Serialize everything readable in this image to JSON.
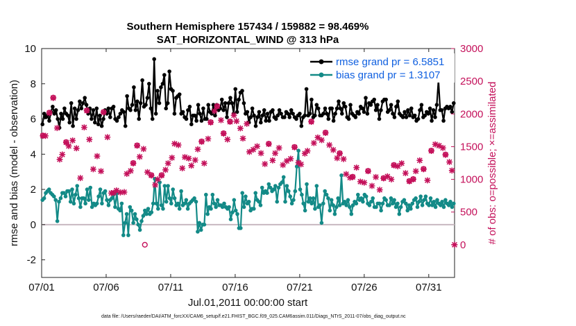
{
  "chart_data": {
    "type": "line",
    "title": "Southern Hemisphere 157434 / 159882 = 98.469%",
    "subtitle": "SAT_HORIZONTAL_WIND @ 313 hPa",
    "xlabel": "Jul.01,2011 00:00:00 start",
    "ylabel_left": "rmse and bias (model - observation)",
    "ylabel_right": "# of obs: o=possible; ×=assimilated",
    "footnote": "data file: /Users/raeder/DAI/ATM_forcXX/CAM6_setup/f.e21.FHIST_BGC.f09_025.CAM6assim.011/Diags_NTrS_2011-07/obs_diag_output.nc",
    "xlim": [
      0,
      32
    ],
    "x_ticks": [
      0,
      5,
      10,
      15,
      20,
      25,
      30
    ],
    "x_tick_labels": [
      "07/01",
      "07/06",
      "07/11",
      "07/16",
      "07/21",
      "07/26",
      "07/31"
    ],
    "ylim_left": [
      -3,
      10
    ],
    "y_ticks_left": [
      "-2",
      "0",
      "2",
      "4",
      "6",
      "8",
      "10"
    ],
    "ylim_right": [
      -500,
      3000
    ],
    "y_ticks_right": [
      "0",
      "500",
      "1000",
      "1500",
      "2000",
      "2500",
      "3000"
    ],
    "legend": {
      "position": "top-right",
      "entries": [
        {
          "label": "rmse grand pr = 6.5851",
          "color": "#000000"
        },
        {
          "label": "bias grand pr = 1.3107",
          "color": "#138a87"
        }
      ]
    },
    "colors": {
      "rmse": "#000000",
      "bias": "#138a87",
      "obs": "#c4105a",
      "zero_line": "#c8b8c0"
    },
    "series": [
      {
        "name": "rmse",
        "axis": "left",
        "values": [
          5.7,
          6.3,
          6.1,
          6.2,
          5.9,
          6.4,
          6.7,
          6.3,
          6.5,
          6.0,
          5.5,
          6.3,
          6.0,
          6.6,
          6.3,
          6.2,
          5.8,
          6.9,
          5.6,
          6.6,
          6.0,
          6.5,
          7.0,
          6.6,
          6.9,
          7.2,
          6.8,
          6.3,
          6.6,
          6.0,
          6.5,
          5.8,
          6.6,
          5.7,
          6.2,
          5.6,
          6.0,
          6.5,
          6.3,
          6.6,
          6.1,
          6.6,
          6.7,
          6.0,
          5.9,
          6.1,
          6.3,
          6.5,
          6.4,
          5.6,
          7.3,
          6.6,
          6.5,
          6.8,
          7.8,
          6.5,
          7.0,
          6.0,
          6.9,
          8.2,
          6.7,
          6.8,
          7.2,
          8.0,
          6.6,
          6.0,
          9.4,
          6.3,
          7.6,
          6.9,
          7.8,
          8.0,
          8.5,
          6.6,
          6.9,
          8.7,
          7.7,
          7.6,
          6.3,
          7.2,
          7.3,
          7.4,
          6.3,
          6.4,
          6.1,
          6.0,
          6.5,
          6.7,
          5.7,
          6.2,
          6.2,
          5.9,
          6.8,
          6.3,
          5.9,
          6.6,
          6.0,
          6.0,
          6.8,
          6.4,
          6.3,
          6.8,
          6.2,
          6.8,
          6.5,
          6.6,
          7.1,
          6.5,
          6.9,
          6.1,
          6.9,
          7.2,
          6.9,
          6.3,
          7.7,
          6.4,
          7.1,
          7.5,
          7.6,
          6.9,
          6.3,
          6.4,
          5.8,
          6.1,
          6.6,
          6.2,
          5.6,
          6.1,
          6.4,
          5.8,
          6.2,
          6.5,
          5.9,
          6.3,
          5.9,
          6.4,
          6.5,
          6.1,
          6.0,
          6.2,
          6.5,
          6.3,
          6.1,
          6.1,
          6.4,
          6.3,
          6.1,
          6.5,
          6.3,
          6.1,
          6.0,
          6.2,
          6.3,
          5.6,
          6.1,
          6.2,
          7.7,
          6.2,
          6.3,
          7.1,
          6.1,
          6.2,
          6.8,
          6.6,
          6.2,
          6.2,
          6.3,
          6.6,
          6.3,
          6.0,
          6.6,
          6.6,
          5.9,
          6.3,
          6.6,
          7.0,
          6.6,
          6.3,
          6.9,
          6.7,
          6.1,
          6.0,
          6.8,
          6.3,
          6.2,
          6.1,
          6.4,
          6.3,
          6.7,
          6.6,
          6.4,
          7.2,
          6.3,
          6.9,
          6.8,
          7.0,
          7.1,
          6.5,
          6.8,
          6.0,
          6.5,
          7.0,
          7.1,
          7.1,
          6.4,
          6.5,
          6.8,
          6.3,
          6.1,
          6.7,
          7.0,
          6.3,
          6.2,
          6.1,
          6.4,
          6.1,
          6.5,
          6.2,
          6.6,
          6.1,
          6.2,
          5.9,
          6.0,
          6.5,
          6.8,
          6.1,
          6.2,
          6.4,
          6.3,
          6.6,
          5.9,
          6.5,
          6.1,
          6.8,
          8.2,
          6.5,
          6.5,
          5.9,
          6.6,
          6.7,
          6.6,
          6.7,
          6.4,
          6.9
        ]
      },
      {
        "name": "bias",
        "axis": "left",
        "values": [
          1.4,
          1.5,
          1.8,
          1.9,
          2.0,
          1.8,
          1.7,
          1.6,
          1.4,
          0.2,
          1.3,
          1.5,
          1.8,
          1.8,
          1.6,
          1.9,
          1.9,
          1.3,
          2.0,
          1.2,
          1.7,
          2.2,
          1.5,
          1.0,
          1.5,
          1.5,
          1.2,
          2.0,
          1.4,
          2.1,
          1.0,
          1.2,
          1.1,
          1.2,
          1.6,
          2.0,
          1.2,
          1.8,
          1.9,
          1.4,
          1.1,
          1.4,
          1.5,
          1.7,
          1.0,
          1.8,
          0.9,
          0.8,
          1.2,
          -0.6,
          0.1,
          0.6,
          -0.6,
          1.0,
          0.8,
          0.1,
          0.6,
          0.3,
          0.0,
          -0.3,
          0.2,
          0.5,
          0.8,
          0.6,
          0.9,
          0.6,
          0.7,
          1.2,
          2.6,
          1.2,
          0.9,
          2.4,
          1.1,
          0.9,
          2.2,
          1.3,
          2.2,
          1.5,
          1.2,
          2.0,
          1.5,
          1.1,
          1.2,
          0.9,
          1.9,
          1.1,
          1.2,
          1.4,
          0.9,
          1.2,
          1.3,
          1.4,
          1.5,
          1.3,
          -0.4,
          0.1,
          -0.3,
          0.0,
          0.0,
          1.7,
          0.6,
          1.0,
          0.9,
          1.7,
          1.2,
          1.0,
          1.4,
          1.1,
          1.1,
          1.0,
          1.2,
          1.0,
          0.9,
          1.0,
          0.3,
          0.7,
          1.4,
          0.8,
          0.6,
          -0.2,
          -0.2,
          1.8,
          1.0,
          1.6,
          1.2,
          1.3,
          0.8,
          0.9,
          0.9,
          1.8,
          1.4,
          1.3,
          1.1,
          2.1,
          1.8,
          1.9,
          1.8,
          2.3,
          2.1,
          1.9,
          2.0,
          2.2,
          1.3,
          2.1,
          2.3,
          2.4,
          2.7,
          1.3,
          2.2,
          1.9,
          1.6,
          1.2,
          1.4,
          1.9,
          3.3,
          4.2,
          2.0,
          1.7,
          1.2,
          0.8,
          2.3,
          1.3,
          1.5,
          1.2,
          1.5,
          0.9,
          2.2,
          1.0,
          1.1,
          0.1,
          1.2,
          1.9,
          1.7,
          1.5,
          0.8,
          1.4,
          1.1,
          0.6,
          1.0,
          1.5,
          1.1,
          2.8,
          1.2,
          1.3,
          1.1,
          1.4,
          1.0,
          0.6,
          1.1,
          1.3,
          1.2,
          1.7,
          1.4,
          1.5,
          1.3,
          1.7,
          1.6,
          1.2,
          1.1,
          1.3,
          1.5,
          1.0,
          1.0,
          1.2,
          1.2,
          0.8,
          1.2,
          1.5,
          1.4,
          1.1,
          1.1,
          1.5,
          1.2,
          1.4,
          1.0,
          1.2,
          0.6,
          1.0,
          1.3,
          1.4,
          1.2,
          0.8,
          1.1,
          0.9,
          1.2,
          1.4,
          1.5,
          1.0,
          1.3,
          1.6,
          1.1,
          1.4,
          1.6,
          1.2,
          1.1,
          1.5,
          1.1,
          1.3,
          1.0,
          1.4,
          1.2,
          1.1,
          1.3,
          1.0,
          1.4,
          1.2,
          1.1,
          1.3,
          1.0,
          1.2
        ]
      },
      {
        "name": "obs_assimilated",
        "axis": "right",
        "points": [
          [
            0.1,
            1665
          ],
          [
            0.3,
            1665
          ],
          [
            0.6,
            2015
          ],
          [
            0.9,
            2245
          ],
          [
            1.2,
            1785
          ],
          [
            1.4,
            1305
          ],
          [
            1.6,
            1380
          ],
          [
            1.9,
            1565
          ],
          [
            2.1,
            1510
          ],
          [
            2.4,
            1595
          ],
          [
            2.7,
            1475
          ],
          [
            3.0,
            1020
          ],
          [
            3.3,
            1795
          ],
          [
            3.5,
            2050
          ],
          [
            3.7,
            1610
          ],
          [
            4.0,
            1155
          ],
          [
            4.3,
            1355
          ],
          [
            4.6,
            1125
          ],
          [
            4.8,
            2025
          ],
          [
            5.1,
            1645
          ],
          [
            5.4,
            790
          ],
          [
            5.6,
            795
          ],
          [
            5.8,
            830
          ],
          [
            6.1,
            800
          ],
          [
            6.4,
            805
          ],
          [
            6.6,
            1085
          ],
          [
            6.9,
            1130
          ],
          [
            7.1,
            1245
          ],
          [
            7.4,
            1515
          ],
          [
            7.6,
            1345
          ],
          [
            7.9,
            1465
          ],
          [
            8.2,
            1110
          ],
          [
            8.5,
            1060
          ],
          [
            8.8,
            915
          ],
          [
            9.0,
            1000
          ],
          [
            9.3,
            1060
          ],
          [
            9.6,
            1145
          ],
          [
            9.8,
            1245
          ],
          [
            10.1,
            1330
          ],
          [
            10.3,
            1545
          ],
          [
            10.6,
            1525
          ],
          [
            10.9,
            1170
          ],
          [
            11.1,
            1340
          ],
          [
            11.4,
            1320
          ],
          [
            11.6,
            1210
          ],
          [
            11.9,
            1295
          ],
          [
            12.1,
            1460
          ],
          [
            12.4,
            1575
          ],
          [
            12.6,
            1245
          ],
          [
            12.9,
            1620
          ],
          [
            13.1,
            1870
          ],
          [
            13.4,
            2045
          ],
          [
            13.6,
            2115
          ],
          [
            13.9,
            1905
          ],
          [
            14.1,
            1700
          ],
          [
            14.4,
            1610
          ],
          [
            14.6,
            1880
          ],
          [
            14.9,
            1980
          ],
          [
            15.1,
            1890
          ],
          [
            15.4,
            1780
          ],
          [
            15.6,
            1625
          ],
          [
            15.9,
            1850
          ],
          [
            16.1,
            1420
          ],
          [
            16.4,
            1455
          ],
          [
            16.7,
            1505
          ],
          [
            17.0,
            1400
          ],
          [
            17.3,
            1235
          ],
          [
            17.6,
            1540
          ],
          [
            17.9,
            1290
          ],
          [
            18.1,
            1400
          ],
          [
            18.4,
            1480
          ],
          [
            18.7,
            1220
          ],
          [
            19.0,
            1280
          ],
          [
            19.3,
            1315
          ],
          [
            19.6,
            1490
          ],
          [
            19.9,
            1255
          ],
          [
            20.1,
            1230
          ],
          [
            20.4,
            1395
          ],
          [
            20.6,
            1435
          ],
          [
            20.9,
            1880
          ],
          [
            21.1,
            1555
          ],
          [
            21.4,
            1640
          ],
          [
            21.7,
            1600
          ],
          [
            22.0,
            1710
          ],
          [
            22.3,
            1525
          ],
          [
            22.6,
            1450
          ],
          [
            22.9,
            1325
          ],
          [
            23.1,
            1395
          ],
          [
            23.4,
            1310
          ],
          [
            23.6,
            1080
          ],
          [
            23.9,
            1025
          ],
          [
            24.1,
            1035
          ],
          [
            24.4,
            1180
          ],
          [
            24.7,
            965
          ],
          [
            25.0,
            950
          ],
          [
            25.3,
            1125
          ],
          [
            25.6,
            900
          ],
          [
            25.9,
            1035
          ],
          [
            26.2,
            840
          ],
          [
            26.5,
            1015
          ],
          [
            26.8,
            1045
          ],
          [
            27.1,
            1000
          ],
          [
            27.3,
            1215
          ],
          [
            27.6,
            1200
          ],
          [
            27.9,
            1245
          ],
          [
            28.2,
            1095
          ],
          [
            28.5,
            970
          ],
          [
            28.8,
            1000
          ],
          [
            29.0,
            1125
          ],
          [
            29.3,
            1290
          ],
          [
            29.6,
            1155
          ],
          [
            29.9,
            985
          ],
          [
            30.2,
            1435
          ],
          [
            30.5,
            1535
          ],
          [
            30.8,
            1515
          ],
          [
            31.1,
            1480
          ],
          [
            31.3,
            1375
          ],
          [
            31.6,
            1265
          ],
          [
            31.8,
            1135
          ],
          [
            32.0,
            0
          ]
        ]
      },
      {
        "name": "obs_possible",
        "axis": "right",
        "points": [
          [
            0.1,
            1670
          ],
          [
            0.6,
            2020
          ],
          [
            0.9,
            2250
          ],
          [
            1.9,
            1570
          ],
          [
            3.5,
            2055
          ],
          [
            4.8,
            2030
          ],
          [
            7.1,
            1250
          ],
          [
            7.4,
            1520
          ],
          [
            8.0,
            0
          ],
          [
            8.5,
            1065
          ],
          [
            9.3,
            1065
          ],
          [
            12.4,
            1580
          ],
          [
            13.1,
            1875
          ],
          [
            13.6,
            2120
          ],
          [
            14.1,
            1705
          ],
          [
            14.6,
            1885
          ],
          [
            17.6,
            1545
          ],
          [
            19.6,
            1495
          ],
          [
            20.9,
            1885
          ],
          [
            22.0,
            1715
          ],
          [
            23.1,
            1400
          ],
          [
            24.1,
            1040
          ],
          [
            25.3,
            1130
          ],
          [
            26.5,
            1020
          ],
          [
            27.3,
            1220
          ],
          [
            28.5,
            975
          ],
          [
            28.8,
            1005
          ],
          [
            29.6,
            1160
          ],
          [
            30.2,
            1440
          ],
          [
            31.3,
            1380
          ]
        ]
      }
    ]
  }
}
